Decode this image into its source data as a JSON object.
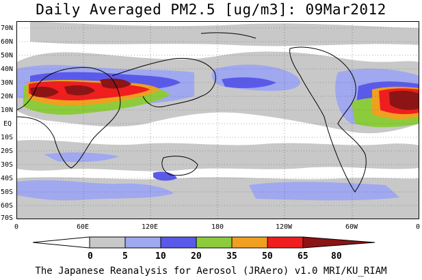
{
  "title": "Daily Averaged PM2.5 [ug/m3]: 09Mar2012",
  "credit": "The Japanese Reanalysis for Aerosol (JRAero) v1.0 MRI/KU_RIAM",
  "map": {
    "lat_labels": [
      "70N",
      "60N",
      "50N",
      "40N",
      "30N",
      "20N",
      "10N",
      "EQ",
      "10S",
      "20S",
      "30S",
      "40S",
      "50S",
      "60S",
      "70S"
    ],
    "lon_labels": [
      "0",
      "60E",
      "120E",
      "180",
      "120W",
      "60W",
      "0"
    ],
    "ocean_color": "#c8c8c8"
  },
  "colorbar": {
    "labels": [
      "0",
      "5",
      "10",
      "20",
      "35",
      "50",
      "65",
      "80"
    ],
    "colors": [
      "#ffffff",
      "#c8c8c8",
      "#a0a8f0",
      "#5a5aea",
      "#8ccc3c",
      "#f0a020",
      "#f01e1e",
      "#8c1414"
    ]
  }
}
